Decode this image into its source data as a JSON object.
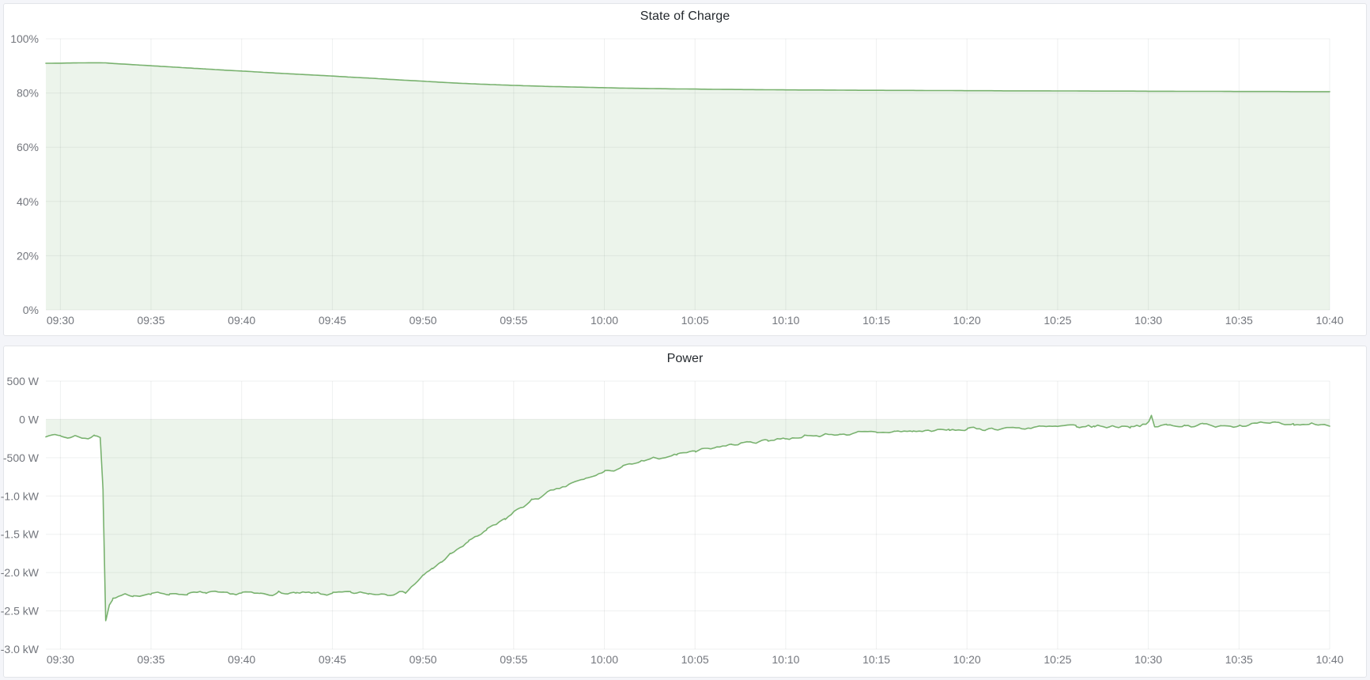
{
  "page": {
    "background_color": "#f4f5f9",
    "panel_background": "#ffffff",
    "panel_border_color": "#e3e5e9",
    "grid_color": "rgba(34,41,49,0.07)",
    "tick_text_color": "#73767d",
    "title_text_color": "#24292e"
  },
  "chart_data": [
    {
      "type": "area",
      "title": "State of Charge",
      "unit": "%",
      "legend": "none",
      "grid": true,
      "line_color": "#79b26f",
      "fill_color": "#79b26f",
      "fill_opacity": 0.14,
      "ylim": [
        0,
        100
      ],
      "baseline": 0,
      "x_range_minutes": [
        -0.8,
        70
      ],
      "x_tick_minutes": [
        0,
        5,
        10,
        15,
        20,
        25,
        30,
        35,
        40,
        45,
        50,
        55,
        60,
        65,
        70
      ],
      "x_tick_labels": [
        "09:30",
        "09:35",
        "09:40",
        "09:45",
        "09:50",
        "09:55",
        "10:00",
        "10:05",
        "10:10",
        "10:15",
        "10:20",
        "10:25",
        "10:30",
        "10:35",
        "10:40"
      ],
      "y_tick_values": [
        100,
        80,
        60,
        40,
        20,
        0
      ],
      "y_tick_labels": [
        "100%",
        "80%",
        "60%",
        "40%",
        "20%",
        "0%"
      ],
      "noise": {
        "seed": 11,
        "segments": [
          {
            "from": -1,
            "amp": 0
          }
        ]
      },
      "series": [
        {
          "name": "State of Charge",
          "points": [
            [
              -0.8,
              90.95
            ],
            [
              0,
              91.0
            ],
            [
              1,
              91.1
            ],
            [
              2,
              91.15
            ],
            [
              2.5,
              91.1
            ],
            [
              3,
              90.85
            ],
            [
              4,
              90.45
            ],
            [
              5,
              90.05
            ],
            [
              6,
              89.65
            ],
            [
              7,
              89.25
            ],
            [
              8,
              88.85
            ],
            [
              9,
              88.45
            ],
            [
              10,
              88.1
            ],
            [
              11,
              87.7
            ],
            [
              12,
              87.3
            ],
            [
              13,
              86.95
            ],
            [
              14,
              86.6
            ],
            [
              15,
              86.25
            ],
            [
              16,
              85.85
            ],
            [
              17,
              85.5
            ],
            [
              18,
              85.1
            ],
            [
              19,
              84.7
            ],
            [
              20,
              84.35
            ],
            [
              21,
              83.95
            ],
            [
              22,
              83.6
            ],
            [
              23,
              83.3
            ],
            [
              24,
              83.05
            ],
            [
              25,
              82.8
            ],
            [
              26,
              82.6
            ],
            [
              27,
              82.4
            ],
            [
              28,
              82.25
            ],
            [
              29,
              82.1
            ],
            [
              30,
              81.95
            ],
            [
              31,
              81.8
            ],
            [
              32,
              81.7
            ],
            [
              33,
              81.6
            ],
            [
              34,
              81.5
            ],
            [
              35,
              81.45
            ],
            [
              36,
              81.35
            ],
            [
              37,
              81.3
            ],
            [
              38,
              81.25
            ],
            [
              39,
              81.2
            ],
            [
              40,
              81.15
            ],
            [
              41,
              81.1
            ],
            [
              42,
              81.1
            ],
            [
              43,
              81.05
            ],
            [
              44,
              81.0
            ],
            [
              45,
              81.0
            ],
            [
              46,
              80.95
            ],
            [
              47,
              80.95
            ],
            [
              48,
              80.9
            ],
            [
              49,
              80.9
            ],
            [
              50,
              80.85
            ],
            [
              51,
              80.85
            ],
            [
              52,
              80.8
            ],
            [
              53,
              80.8
            ],
            [
              54,
              80.8
            ],
            [
              55,
              80.75
            ],
            [
              56,
              80.75
            ],
            [
              57,
              80.7
            ],
            [
              58,
              80.7
            ],
            [
              59,
              80.7
            ],
            [
              60,
              80.65
            ],
            [
              61,
              80.65
            ],
            [
              62,
              80.6
            ],
            [
              63,
              80.6
            ],
            [
              64,
              80.6
            ],
            [
              65,
              80.55
            ],
            [
              66,
              80.55
            ],
            [
              67,
              80.55
            ],
            [
              68,
              80.5
            ],
            [
              69,
              80.5
            ],
            [
              70,
              80.5
            ]
          ]
        }
      ]
    },
    {
      "type": "area",
      "title": "Power",
      "unit": "W",
      "legend": "none",
      "grid": true,
      "line_color": "#79b26f",
      "fill_color": "#79b26f",
      "fill_opacity": 0.14,
      "ylim": [
        -3000,
        500
      ],
      "baseline": 0,
      "x_range_minutes": [
        -0.8,
        70
      ],
      "x_tick_minutes": [
        0,
        5,
        10,
        15,
        20,
        25,
        30,
        35,
        40,
        45,
        50,
        55,
        60,
        65,
        70
      ],
      "x_tick_labels": [
        "09:30",
        "09:35",
        "09:40",
        "09:45",
        "09:50",
        "09:55",
        "10:00",
        "10:05",
        "10:10",
        "10:15",
        "10:20",
        "10:25",
        "10:30",
        "10:35",
        "10:40"
      ],
      "y_tick_values": [
        500,
        0,
        -500,
        -1000,
        -1500,
        -2000,
        -2500,
        -3000
      ],
      "y_tick_labels": [
        "500 W",
        "0 W",
        "-500 W",
        "-1.0 kW",
        "-1.5 kW",
        "-2.0 kW",
        "-2.5 kW",
        "-3.0 kW"
      ],
      "noise": {
        "seed": 7,
        "segments": [
          {
            "from": -1,
            "amp": 14
          },
          {
            "from": 2.7,
            "amp": 22
          },
          {
            "from": 19.4,
            "amp": 20
          },
          {
            "from": 50,
            "amp": 24
          }
        ]
      },
      "series": [
        {
          "name": "Power",
          "points": [
            [
              -0.8,
              -205
            ],
            [
              0,
              -210
            ],
            [
              0.4,
              -245
            ],
            [
              0.8,
              -210
            ],
            [
              1.2,
              -235
            ],
            [
              1.6,
              -250
            ],
            [
              1.9,
              -210
            ],
            [
              2.2,
              -220
            ],
            [
              2.35,
              -900
            ],
            [
              2.5,
              -2630
            ],
            [
              2.7,
              -2430
            ],
            [
              2.9,
              -2350
            ],
            [
              3.2,
              -2330
            ],
            [
              3.6,
              -2300
            ],
            [
              4,
              -2290
            ],
            [
              5,
              -2280
            ],
            [
              6,
              -2270
            ],
            [
              7,
              -2280
            ],
            [
              8,
              -2265
            ],
            [
              9,
              -2280
            ],
            [
              10,
              -2270
            ],
            [
              11,
              -2280
            ],
            [
              12,
              -2265
            ],
            [
              13,
              -2280
            ],
            [
              14,
              -2270
            ],
            [
              15,
              -2280
            ],
            [
              16,
              -2265
            ],
            [
              17,
              -2275
            ],
            [
              18,
              -2270
            ],
            [
              19,
              -2255
            ],
            [
              19.4,
              -2180
            ],
            [
              20,
              -2050
            ],
            [
              20.5,
              -1950
            ],
            [
              21,
              -1860
            ],
            [
              21.5,
              -1770
            ],
            [
              22,
              -1680
            ],
            [
              22.5,
              -1600
            ],
            [
              23,
              -1520
            ],
            [
              23.5,
              -1450
            ],
            [
              24,
              -1380
            ],
            [
              24.5,
              -1310
            ],
            [
              25,
              -1210
            ],
            [
              26,
              -1060
            ],
            [
              27,
              -950
            ],
            [
              28,
              -860
            ],
            [
              29,
              -770
            ],
            [
              30,
              -690
            ],
            [
              31,
              -620
            ],
            [
              32,
              -560
            ],
            [
              33,
              -505
            ],
            [
              34,
              -455
            ],
            [
              35,
              -405
            ],
            [
              36,
              -365
            ],
            [
              37,
              -330
            ],
            [
              38,
              -300
            ],
            [
              39,
              -270
            ],
            [
              40,
              -245
            ],
            [
              41,
              -225
            ],
            [
              42,
              -205
            ],
            [
              43,
              -190
            ],
            [
              44,
              -180
            ],
            [
              45,
              -170
            ],
            [
              46,
              -160
            ],
            [
              47,
              -155
            ],
            [
              48,
              -148
            ],
            [
              49,
              -140
            ],
            [
              50,
              -132
            ],
            [
              51,
              -122
            ],
            [
              52,
              -115
            ],
            [
              53,
              -110
            ],
            [
              54,
              -105
            ],
            [
              55,
              -100
            ],
            [
              56,
              -95
            ],
            [
              57,
              -92
            ],
            [
              58,
              -88
            ],
            [
              59,
              -84
            ],
            [
              60,
              -60
            ],
            [
              60.17,
              40
            ],
            [
              60.35,
              -95
            ],
            [
              61,
              -78
            ],
            [
              62,
              -72
            ],
            [
              63,
              -76
            ],
            [
              64,
              -70
            ],
            [
              65,
              -72
            ],
            [
              66,
              -66
            ],
            [
              67,
              -62
            ],
            [
              68,
              -66
            ],
            [
              69,
              -60
            ],
            [
              70,
              -52
            ]
          ]
        }
      ]
    }
  ]
}
